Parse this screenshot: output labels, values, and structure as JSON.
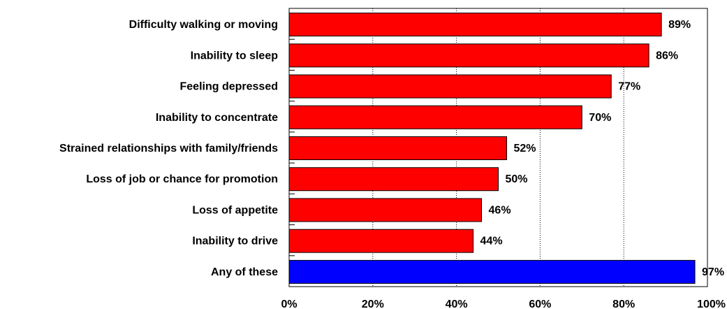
{
  "chart_data": {
    "type": "bar",
    "orientation": "horizontal",
    "categories": [
      "Difficulty walking or moving",
      "Inability to sleep",
      "Feeling depressed",
      "Inability to concentrate",
      "Strained relationships with family/friends",
      "Loss of job or chance for promotion",
      "Loss of appetite",
      "Inability to drive",
      "Any of these"
    ],
    "values": [
      89,
      86,
      77,
      70,
      52,
      50,
      46,
      44,
      97
    ],
    "value_labels": [
      "89%",
      "86%",
      "77%",
      "70%",
      "52%",
      "50%",
      "46%",
      "44%",
      "97%"
    ],
    "bar_colors": [
      "#ff0000",
      "#ff0000",
      "#ff0000",
      "#ff0000",
      "#ff0000",
      "#ff0000",
      "#ff0000",
      "#ff0000",
      "#0000ff"
    ],
    "xlim": [
      0,
      100
    ],
    "x_ticks": [
      0,
      20,
      40,
      60,
      80,
      100
    ],
    "x_tick_labels": [
      "0%",
      "20%",
      "40%",
      "60%",
      "80%",
      "100%"
    ],
    "grid": "vertical dotted",
    "legend": "none"
  }
}
